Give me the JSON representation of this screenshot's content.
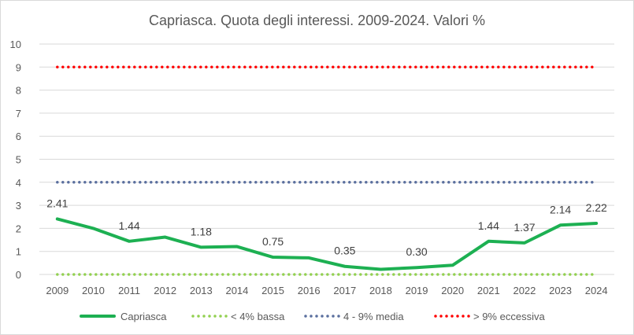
{
  "chart_data": {
    "type": "line",
    "title": "Capriasca. Quota degli interessi. 2009-2024. Valori %",
    "x": [
      "2009",
      "2010",
      "2011",
      "2012",
      "2013",
      "2014",
      "2015",
      "2016",
      "2017",
      "2018",
      "2019",
      "2020",
      "2021",
      "2022",
      "2023",
      "2024"
    ],
    "ylim": [
      0,
      10
    ],
    "yticks": [
      "0",
      "1",
      "2",
      "3",
      "4",
      "5",
      "6",
      "7",
      "8",
      "9",
      "10"
    ],
    "grid": true,
    "legend_position": "bottom",
    "series": [
      {
        "name": "Capriasca",
        "style": "solid",
        "color": "#1db052",
        "values": [
          2.41,
          2.0,
          1.44,
          1.62,
          1.18,
          1.21,
          0.75,
          0.72,
          0.35,
          0.22,
          0.3,
          0.4,
          1.44,
          1.37,
          2.14,
          2.22
        ]
      },
      {
        "name": "< 4% bassa",
        "style": "dotted",
        "color": "#92d050",
        "values": [
          0,
          0,
          0,
          0,
          0,
          0,
          0,
          0,
          0,
          0,
          0,
          0,
          0,
          0,
          0,
          0
        ]
      },
      {
        "name": "4 - 9% media",
        "style": "dotted",
        "color": "#5a6f9e",
        "values": [
          4,
          4,
          4,
          4,
          4,
          4,
          4,
          4,
          4,
          4,
          4,
          4,
          4,
          4,
          4,
          4
        ]
      },
      {
        "name": "> 9% eccessiva",
        "style": "dotted",
        "color": "#ff0000",
        "values": [
          9,
          9,
          9,
          9,
          9,
          9,
          9,
          9,
          9,
          9,
          9,
          9,
          9,
          9,
          9,
          9
        ]
      }
    ],
    "data_labels": [
      {
        "index": 0,
        "text": "2.41"
      },
      {
        "index": 2,
        "text": "1.44"
      },
      {
        "index": 4,
        "text": "1.18"
      },
      {
        "index": 6,
        "text": "0.75"
      },
      {
        "index": 8,
        "text": "0.35"
      },
      {
        "index": 10,
        "text": "0.30"
      },
      {
        "index": 12,
        "text": "1.44"
      },
      {
        "index": 13,
        "text": "1.37"
      },
      {
        "index": 14,
        "text": "2.14"
      },
      {
        "index": 15,
        "text": "2.22"
      }
    ]
  }
}
